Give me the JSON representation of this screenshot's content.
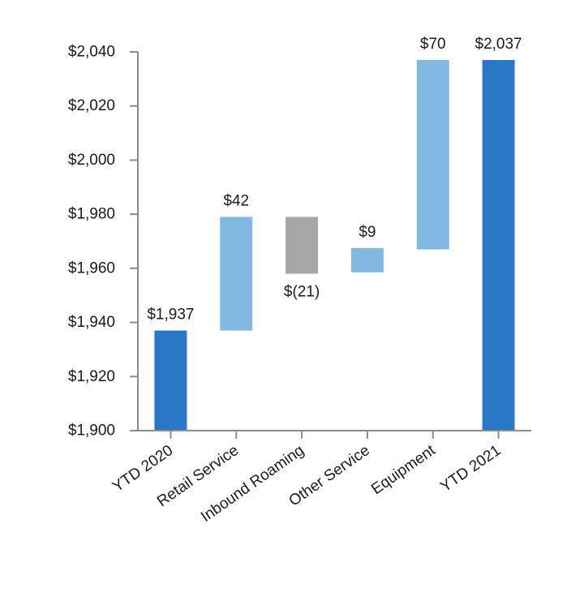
{
  "chart_data": {
    "type": "waterfall",
    "categories": [
      "YTD 2020",
      "Retail Service",
      "Inbound Roaming",
      "Other Service",
      "Equipment",
      "YTD 2021"
    ],
    "bars": [
      {
        "category": "YTD 2020",
        "kind": "total",
        "start": 1900,
        "end": 1937,
        "label": "$1,937",
        "color": "#2a77c8"
      },
      {
        "category": "Retail Service",
        "kind": "increase",
        "start": 1937,
        "end": 1979,
        "label": "$42",
        "color": "#82b9e2"
      },
      {
        "category": "Inbound Roaming",
        "kind": "decrease",
        "start": 1979,
        "end": 1958,
        "label": "$(21)",
        "color": "#a6a6a6"
      },
      {
        "category": "Other Service",
        "kind": "increase",
        "start": 1958.5,
        "end": 1967.5,
        "label": "$9",
        "color": "#82b9e2"
      },
      {
        "category": "Equipment",
        "kind": "increase",
        "start": 1967,
        "end": 2037,
        "label": "$70",
        "color": "#82b9e2"
      },
      {
        "category": "YTD 2021",
        "kind": "total",
        "start": 1900,
        "end": 2037,
        "label": "$2,037",
        "color": "#2a77c8"
      }
    ],
    "yticks": [
      1900,
      1920,
      1940,
      1960,
      1980,
      2000,
      2020,
      2040
    ],
    "ytick_labels": [
      "$1,900",
      "$1,920",
      "$1,940",
      "$1,960",
      "$1,980",
      "$2,000",
      "$2,020",
      "$2,040"
    ],
    "ylim": [
      1900,
      2040
    ],
    "grid": false,
    "title": "",
    "xlabel": "",
    "ylabel": "",
    "axis_color": "#8c8c8c"
  }
}
